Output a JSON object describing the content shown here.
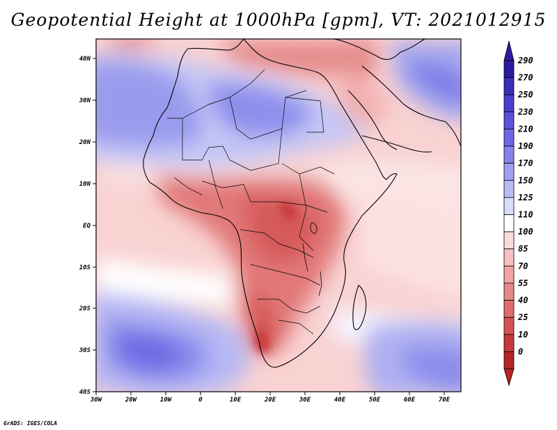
{
  "title": "Geopotential Height at 1000hPa [gpm], VT: 2021012915",
  "credit": "GrADS: IGES/COLA",
  "axes": {
    "lon_labels": [
      "30W",
      "20W",
      "10W",
      "0",
      "10E",
      "20E",
      "30E",
      "40E",
      "50E",
      "60E",
      "70E"
    ],
    "lat_labels": [
      "40N",
      "30N",
      "20N",
      "10N",
      "EQ",
      "10S",
      "20S",
      "30S",
      "40S"
    ]
  },
  "colorbar": {
    "labels": [
      "290",
      "270",
      "250",
      "230",
      "210",
      "190",
      "170",
      "150",
      "125",
      "110",
      "100",
      "85",
      "70",
      "55",
      "40",
      "25",
      "10",
      "0"
    ],
    "colors": [
      "#2b1c9e",
      "#3b2eb8",
      "#4b3fd0",
      "#5a52dc",
      "#6d68e4",
      "#8584ea",
      "#9fa0f0",
      "#babcf5",
      "#d9dcfa",
      "#ffffff",
      "#fbdcdc",
      "#f6c0c0",
      "#f0a4a4",
      "#e98888",
      "#e06c6c",
      "#d55252",
      "#c83a3a",
      "#b82424"
    ]
  }
}
